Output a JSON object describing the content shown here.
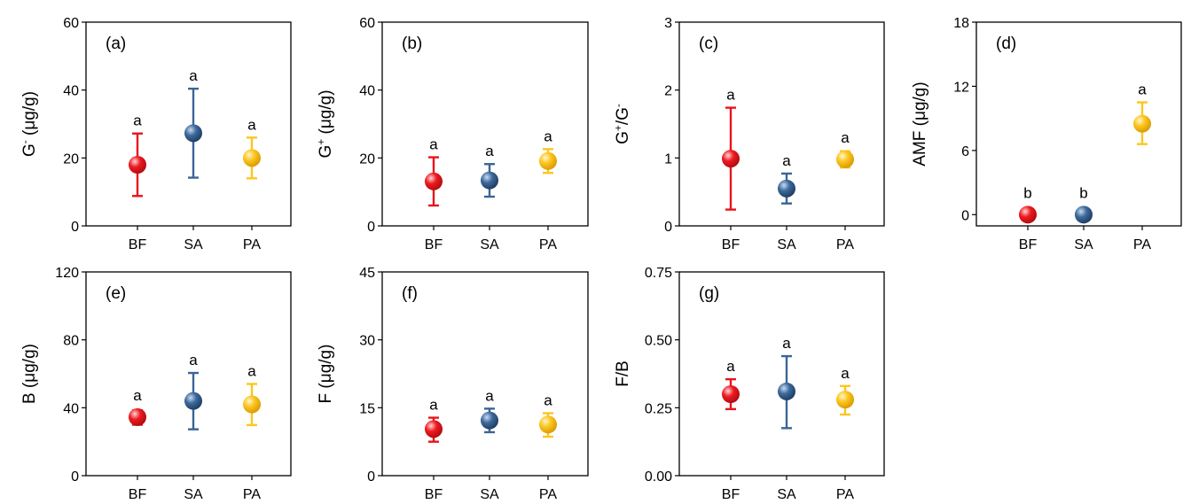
{
  "colors": {
    "BF": "#e8141b",
    "SA": "#3a6596",
    "PA": "#fcc61e"
  },
  "chart_data": [
    {
      "type": "scatter",
      "label": "(a)",
      "ylabel_parts": [
        [
          "G",
          ""
        ],
        [
          "-",
          "sup"
        ],
        [
          " (μg/g)",
          ""
        ]
      ],
      "categories": [
        "BF",
        "SA",
        "PA"
      ],
      "ylim": [
        0,
        60
      ],
      "yticks": [
        "0",
        "20",
        "40",
        "60"
      ],
      "mean": [
        18,
        27.3,
        20
      ],
      "lower": [
        8.8,
        14.2,
        14
      ],
      "upper": [
        27.2,
        40.4,
        26
      ],
      "letters": [
        "a",
        "a",
        "a"
      ]
    },
    {
      "type": "scatter",
      "label": "(b)",
      "ylabel_parts": [
        [
          "G",
          ""
        ],
        [
          "+",
          "sup"
        ],
        [
          " (μg/g)",
          ""
        ]
      ],
      "categories": [
        "BF",
        "SA",
        "PA"
      ],
      "ylim": [
        0,
        60
      ],
      "yticks": [
        "0",
        "20",
        "40",
        "60"
      ],
      "mean": [
        13.1,
        13.4,
        19.1
      ],
      "lower": [
        6,
        8.6,
        15.6
      ],
      "upper": [
        20.2,
        18.2,
        22.6
      ],
      "letters": [
        "a",
        "a",
        "a"
      ]
    },
    {
      "type": "scatter",
      "label": "(c)",
      "ylabel_parts": [
        [
          "G",
          ""
        ],
        [
          "+",
          "sup"
        ],
        [
          "/G",
          ""
        ],
        [
          "-",
          "sup"
        ]
      ],
      "categories": [
        "BF",
        "SA",
        "PA"
      ],
      "ylim": [
        0,
        3
      ],
      "yticks": [
        "0",
        "1",
        "2",
        "3"
      ],
      "mean": [
        0.99,
        0.55,
        0.98
      ],
      "lower": [
        0.24,
        0.33,
        0.86
      ],
      "upper": [
        1.74,
        0.77,
        1.1
      ],
      "letters": [
        "a",
        "a",
        "a"
      ]
    },
    {
      "type": "scatter",
      "label": "(d)",
      "ylabel_parts": [
        [
          "AMF (μg/g)",
          ""
        ]
      ],
      "categories": [
        "BF",
        "SA",
        "PA"
      ],
      "ylim": [
        -1.05,
        18
      ],
      "yticks": [
        "0",
        "6",
        "12",
        "18"
      ],
      "mean": [
        0,
        0,
        8.5
      ],
      "lower": [
        0,
        0,
        6.6
      ],
      "upper": [
        0,
        0,
        10.5
      ],
      "letters": [
        "b",
        "b",
        "a"
      ]
    },
    {
      "type": "scatter",
      "label": "(e)",
      "ylabel_parts": [
        [
          "B (μg/g)",
          ""
        ]
      ],
      "categories": [
        "BF",
        "SA",
        "PA"
      ],
      "ylim": [
        0,
        120
      ],
      "yticks": [
        "0",
        "40",
        "80",
        "120"
      ],
      "mean": [
        34.5,
        44,
        42
      ],
      "lower": [
        30,
        27.3,
        29.8
      ],
      "upper": [
        38.5,
        60.5,
        54
      ],
      "letters": [
        "a",
        "a",
        "a"
      ]
    },
    {
      "type": "scatter",
      "label": "(f)",
      "ylabel_parts": [
        [
          "F (μg/g)",
          ""
        ]
      ],
      "categories": [
        "BF",
        "SA",
        "PA"
      ],
      "ylim": [
        0,
        45
      ],
      "yticks": [
        "0",
        "15",
        "30",
        "45"
      ],
      "mean": [
        10.3,
        12.2,
        11.3
      ],
      "lower": [
        7.5,
        9.6,
        8.6
      ],
      "upper": [
        12.8,
        14.8,
        13.8
      ],
      "letters": [
        "a",
        "a",
        "a"
      ]
    },
    {
      "type": "scatter",
      "label": "(g)",
      "ylabel_parts": [
        [
          "F/B",
          ""
        ]
      ],
      "categories": [
        "BF",
        "SA",
        "PA"
      ],
      "ylim": [
        0,
        0.75
      ],
      "yticks": [
        "0.00",
        "0.25",
        "0.50",
        "0.75"
      ],
      "mean": [
        0.3,
        0.31,
        0.28
      ],
      "lower": [
        0.245,
        0.175,
        0.225
      ],
      "upper": [
        0.355,
        0.44,
        0.33
      ],
      "letters": [
        "a",
        "a",
        "a"
      ]
    }
  ]
}
